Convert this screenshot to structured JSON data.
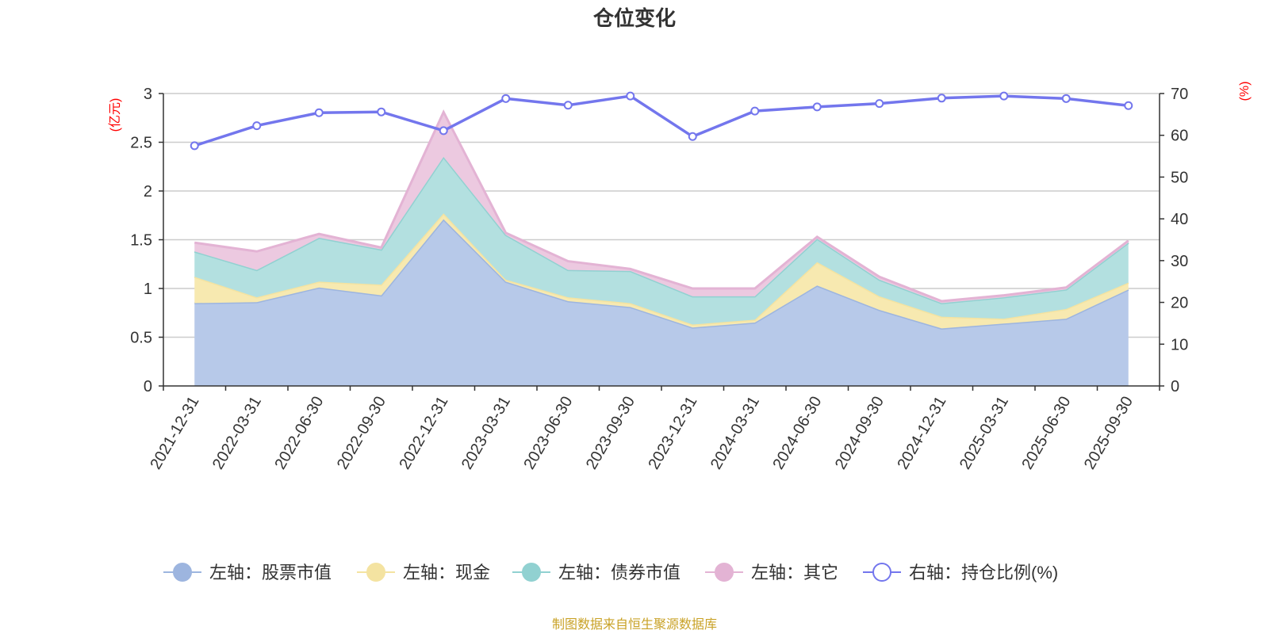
{
  "chart_data": {
    "type": "area",
    "title": "仓位变化",
    "left_axis_unit": "(亿元)",
    "right_axis_unit": "(%)",
    "categories": [
      "2021-12-31",
      "2022-03-31",
      "2022-06-30",
      "2022-09-30",
      "2022-12-31",
      "2023-03-31",
      "2023-06-30",
      "2023-09-30",
      "2023-12-31",
      "2024-03-31",
      "2024-06-30",
      "2024-09-30",
      "2024-12-31",
      "2025-03-31",
      "2025-06-30",
      "2025-09-30"
    ],
    "left_ylim": [
      0,
      3
    ],
    "left_yticks": [
      "0",
      "0.5",
      "1",
      "1.5",
      "2",
      "2.5",
      "3"
    ],
    "right_ylim": [
      0,
      70
    ],
    "right_yticks": [
      "0",
      "10",
      "20",
      "30",
      "40",
      "50",
      "60",
      "70"
    ],
    "stacked_series": [
      {
        "name": "左轴：股票市值",
        "fill": "#b7c9e9",
        "stroke": "#9db5df",
        "values": [
          0.85,
          0.86,
          1.01,
          0.93,
          1.71,
          1.07,
          0.87,
          0.81,
          0.6,
          0.65,
          1.03,
          0.78,
          0.59,
          0.64,
          0.69,
          0.99
        ]
      },
      {
        "name": "左轴：现金",
        "fill": "#f7e9b0",
        "stroke": "#f4e3a1",
        "values": [
          0.27,
          0.05,
          0.06,
          0.11,
          0.06,
          0.02,
          0.04,
          0.04,
          0.03,
          0.03,
          0.24,
          0.14,
          0.12,
          0.05,
          0.1,
          0.07
        ]
      },
      {
        "name": "左轴：债券市值",
        "fill": "#b3e0e0",
        "stroke": "#91d1d1",
        "values": [
          0.26,
          0.28,
          0.45,
          0.36,
          0.58,
          0.46,
          0.28,
          0.33,
          0.29,
          0.24,
          0.24,
          0.17,
          0.14,
          0.22,
          0.2,
          0.41
        ]
      },
      {
        "name": "左轴：其它",
        "fill": "#ecc9e0",
        "stroke": "#e3b3d4",
        "values": [
          0.09,
          0.19,
          0.04,
          0.02,
          0.46,
          0.02,
          0.09,
          0.02,
          0.08,
          0.08,
          0.02,
          0.03,
          0.02,
          0.02,
          0.02,
          0.02
        ]
      }
    ],
    "line_series": {
      "name": "右轴：持仓比例(%)",
      "color": "#7376ed",
      "values": [
        57.5,
        62.3,
        65.4,
        65.6,
        61.1,
        68.8,
        67.2,
        69.4,
        59.7,
        65.8,
        66.8,
        67.6,
        68.9,
        69.4,
        68.8,
        67.1
      ]
    },
    "grid": true,
    "legend_position": "bottom"
  },
  "source_note": "制图数据来自恒生聚源数据库"
}
